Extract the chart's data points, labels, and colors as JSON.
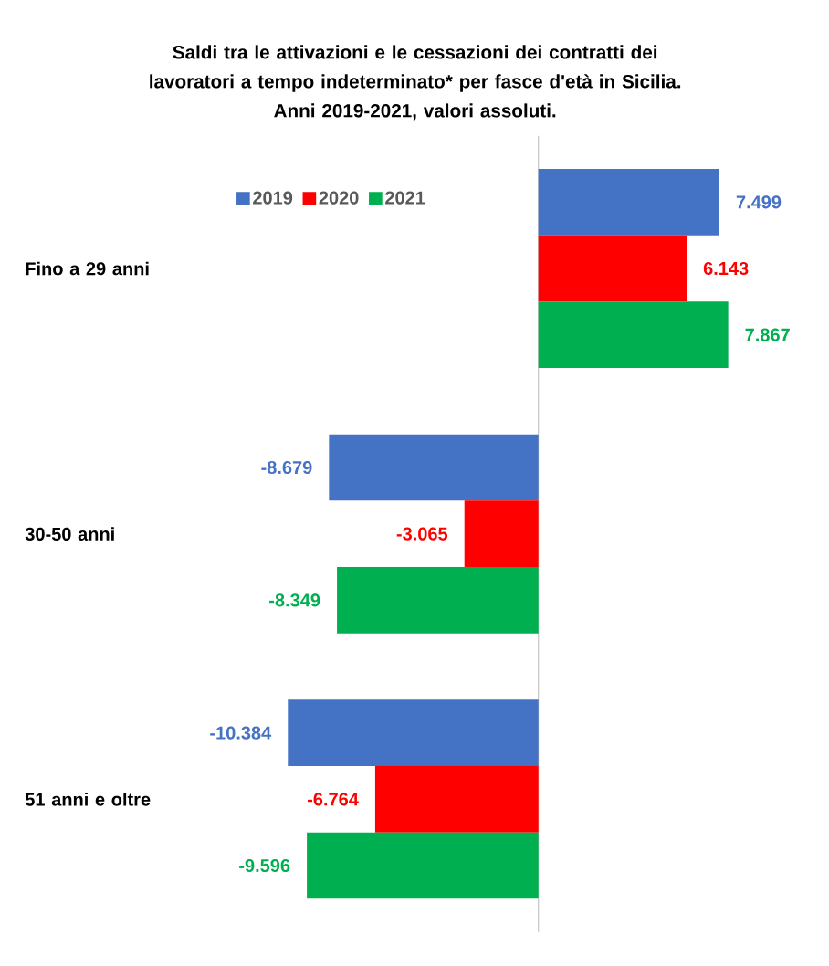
{
  "chart_data": {
    "type": "bar",
    "orientation": "horizontal",
    "title": "Saldi tra le attivazioni e le cessazioni dei contratti dei lavoratori a tempo indeterminato* per fasce d'età in Sicilia.",
    "subtitle": "Anni 2019-2021, valori assoluti.",
    "categories": [
      "Fino a 29 anni",
      "30-50 anni",
      "51 anni e oltre"
    ],
    "series": [
      {
        "name": "2019",
        "color": "#4472c4",
        "values": [
          7499,
          -8679,
          -10384
        ],
        "value_labels": [
          "7.499",
          "-8.679",
          "-10.384"
        ]
      },
      {
        "name": "2020",
        "color": "#ff0000",
        "values": [
          6143,
          -3065,
          -6764
        ],
        "value_labels": [
          "6.143",
          "-3.065",
          "-6.764"
        ]
      },
      {
        "name": "2021",
        "color": "#00b050",
        "values": [
          7867,
          -8349,
          -9596
        ],
        "value_labels": [
          "7.867",
          "-8.349",
          "-9.596"
        ]
      }
    ],
    "legend": "top left"
  }
}
